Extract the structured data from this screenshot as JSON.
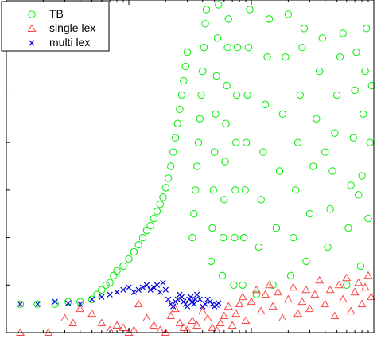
{
  "chart_data": {
    "type": "scatter",
    "title": "",
    "xlabel": "",
    "ylabel": "",
    "xscale": "log",
    "xlim": [
      1,
      1000
    ],
    "ylim": [
      0,
      7
    ],
    "grid": false,
    "legend_position": "top-left",
    "series": [
      {
        "name": "TB",
        "marker": "circle",
        "color": "#00ee00",
        "points": [
          [
            1.3,
            0.6
          ],
          [
            1.8,
            0.6
          ],
          [
            2.5,
            0.6
          ],
          [
            3.2,
            0.65
          ],
          [
            4.0,
            0.65
          ],
          [
            5.0,
            0.7
          ],
          [
            5.5,
            0.8
          ],
          [
            6.0,
            0.9
          ],
          [
            6.5,
            1.0
          ],
          [
            7.0,
            1.05
          ],
          [
            7.5,
            1.2
          ],
          [
            8.0,
            1.3
          ],
          [
            9.0,
            1.4
          ],
          [
            10,
            1.55
          ],
          [
            11,
            1.7
          ],
          [
            12,
            1.85
          ],
          [
            13,
            2.0
          ],
          [
            14,
            2.15
          ],
          [
            15,
            2.25
          ],
          [
            16,
            2.4
          ],
          [
            17,
            2.55
          ],
          [
            18,
            2.7
          ],
          [
            19,
            2.85
          ],
          [
            20,
            3.05
          ],
          [
            21,
            3.25
          ],
          [
            22,
            3.5
          ],
          [
            23,
            3.8
          ],
          [
            24,
            4.1
          ],
          [
            25,
            4.4
          ],
          [
            26,
            4.7
          ],
          [
            27,
            5.0
          ],
          [
            28,
            5.3
          ],
          [
            29,
            5.6
          ],
          [
            30,
            5.9
          ],
          [
            33,
            2.0
          ],
          [
            34,
            2.5
          ],
          [
            35,
            3.0
          ],
          [
            36,
            3.5
          ],
          [
            37,
            4.0
          ],
          [
            38,
            4.5
          ],
          [
            39,
            5.0
          ],
          [
            40,
            5.5
          ],
          [
            41,
            6.0
          ],
          [
            42,
            6.5
          ],
          [
            43,
            6.8
          ],
          [
            47,
            1.5
          ],
          [
            48,
            2.2
          ],
          [
            49,
            3.0
          ],
          [
            50,
            3.8
          ],
          [
            51,
            4.6
          ],
          [
            52,
            5.4
          ],
          [
            53,
            6.2
          ],
          [
            54,
            6.9
          ],
          [
            58,
            1.2
          ],
          [
            59,
            2.0
          ],
          [
            60,
            2.8
          ],
          [
            61,
            3.6
          ],
          [
            62,
            4.4
          ],
          [
            63,
            5.2
          ],
          [
            64,
            6.0
          ],
          [
            65,
            6.6
          ],
          [
            72,
            1.0
          ],
          [
            73,
            2.0
          ],
          [
            74,
            3.0
          ],
          [
            75,
            4.0
          ],
          [
            76,
            5.0
          ],
          [
            77,
            6.0
          ],
          [
            85,
            1.0
          ],
          [
            87,
            2.0
          ],
          [
            89,
            3.0
          ],
          [
            91,
            4.0
          ],
          [
            93,
            5.0
          ],
          [
            95,
            6.0
          ],
          [
            97,
            6.8
          ],
          [
            110,
            0.8
          ],
          [
            115,
            1.8
          ],
          [
            120,
            2.8
          ],
          [
            125,
            3.8
          ],
          [
            130,
            4.8
          ],
          [
            135,
            5.8
          ],
          [
            140,
            6.6
          ],
          [
            150,
            1.0
          ],
          [
            160,
            2.2
          ],
          [
            170,
            3.4
          ],
          [
            180,
            4.6
          ],
          [
            190,
            5.8
          ],
          [
            200,
            6.7
          ],
          [
            210,
            1.2
          ],
          [
            220,
            2.0
          ],
          [
            230,
            3.0
          ],
          [
            240,
            4.0
          ],
          [
            250,
            5.0
          ],
          [
            260,
            6.0
          ],
          [
            270,
            6.4
          ],
          [
            280,
            1.5
          ],
          [
            300,
            2.5
          ],
          [
            320,
            3.5
          ],
          [
            340,
            4.5
          ],
          [
            360,
            5.5
          ],
          [
            380,
            6.2
          ],
          [
            400,
            3.8
          ],
          [
            420,
            1.8
          ],
          [
            440,
            2.6
          ],
          [
            460,
            3.4
          ],
          [
            480,
            4.2
          ],
          [
            500,
            5.0
          ],
          [
            530,
            5.8
          ],
          [
            560,
            6.3
          ],
          [
            600,
            1.0
          ],
          [
            620,
            2.2
          ],
          [
            650,
            3.1
          ],
          [
            680,
            4.1
          ],
          [
            700,
            5.1
          ],
          [
            720,
            5.9
          ],
          [
            750,
            2.9
          ],
          [
            780,
            1.4
          ],
          [
            800,
            3.3
          ],
          [
            820,
            4.6
          ],
          [
            850,
            5.5
          ],
          [
            870,
            6.4
          ],
          [
            900,
            2.4
          ],
          [
            930,
            4.0
          ],
          [
            960,
            5.2
          ]
        ]
      },
      {
        "name": "single lex",
        "marker": "triangle",
        "color": "#ff4444",
        "points": [
          [
            1.3,
            0.0
          ],
          [
            2.2,
            0.0
          ],
          [
            3.0,
            0.3
          ],
          [
            3.5,
            0.2
          ],
          [
            4.0,
            0.5
          ],
          [
            5.0,
            0.4
          ],
          [
            6.0,
            0.2
          ],
          [
            7.0,
            0.05
          ],
          [
            8.0,
            0.15
          ],
          [
            9.0,
            0.1
          ],
          [
            10,
            0.0
          ],
          [
            11,
            0.05
          ],
          [
            12,
            0.6
          ],
          [
            14,
            0.3
          ],
          [
            16,
            0.15
          ],
          [
            18,
            0.05
          ],
          [
            20,
            0.0
          ],
          [
            22,
            0.35
          ],
          [
            24,
            0.5
          ],
          [
            26,
            0.2
          ],
          [
            28,
            0.1
          ],
          [
            30,
            0.05
          ],
          [
            33,
            0.25
          ],
          [
            36,
            0.15
          ],
          [
            40,
            0.45
          ],
          [
            44,
            0.3
          ],
          [
            48,
            0.1
          ],
          [
            52,
            0.05
          ],
          [
            56,
            0.2
          ],
          [
            60,
            0.35
          ],
          [
            65,
            0.55
          ],
          [
            70,
            0.15
          ],
          [
            75,
            0.4
          ],
          [
            80,
            0.6
          ],
          [
            85,
            0.75
          ],
          [
            90,
            0.25
          ],
          [
            100,
            0.65
          ],
          [
            110,
            0.9
          ],
          [
            120,
            0.45
          ],
          [
            130,
            0.8
          ],
          [
            140,
            1.0
          ],
          [
            150,
            0.55
          ],
          [
            165,
            0.85
          ],
          [
            180,
            0.3
          ],
          [
            200,
            0.7
          ],
          [
            220,
            0.95
          ],
          [
            240,
            0.4
          ],
          [
            260,
            0.65
          ],
          [
            280,
            0.9
          ],
          [
            300,
            0.5
          ],
          [
            330,
            0.8
          ],
          [
            360,
            1.1
          ],
          [
            400,
            0.6
          ],
          [
            440,
            0.9
          ],
          [
            480,
            0.35
          ],
          [
            520,
            1.0
          ],
          [
            560,
            0.7
          ],
          [
            600,
            1.15
          ],
          [
            650,
            0.45
          ],
          [
            700,
            0.85
          ],
          [
            750,
            1.05
          ],
          [
            800,
            0.6
          ],
          [
            850,
            0.95
          ],
          [
            900,
            1.2
          ],
          [
            950,
            0.75
          ]
        ]
      },
      {
        "name": "multi lex",
        "marker": "x",
        "color": "#0000dd",
        "points": [
          [
            1.3,
            0.6
          ],
          [
            1.8,
            0.6
          ],
          [
            2.5,
            0.65
          ],
          [
            3.2,
            0.62
          ],
          [
            4.0,
            0.6
          ],
          [
            5.0,
            0.7
          ],
          [
            6.0,
            0.75
          ],
          [
            7.0,
            0.8
          ],
          [
            8.0,
            0.85
          ],
          [
            9.0,
            0.9
          ],
          [
            10,
            0.95
          ],
          [
            11,
            0.85
          ],
          [
            12,
            0.9
          ],
          [
            13,
            0.95
          ],
          [
            14,
            1.0
          ],
          [
            15,
            0.9
          ],
          [
            16,
            0.95
          ],
          [
            17,
            1.0
          ],
          [
            18,
            0.85
          ],
          [
            19,
            1.05
          ],
          [
            20,
            0.9
          ],
          [
            21,
            0.7
          ],
          [
            22,
            0.6
          ],
          [
            23,
            0.55
          ],
          [
            24,
            0.65
          ],
          [
            25,
            0.7
          ],
          [
            26,
            0.8
          ],
          [
            27,
            0.75
          ],
          [
            28,
            0.65
          ],
          [
            29,
            0.6
          ],
          [
            30,
            0.55
          ],
          [
            31,
            0.7
          ],
          [
            32,
            0.75
          ],
          [
            33,
            0.65
          ],
          [
            34,
            0.6
          ],
          [
            35,
            0.7
          ],
          [
            36,
            0.8
          ],
          [
            38,
            0.7
          ],
          [
            40,
            0.55
          ],
          [
            42,
            0.6
          ],
          [
            44,
            0.7
          ],
          [
            46,
            0.65
          ],
          [
            48,
            0.6
          ],
          [
            50,
            0.55
          ],
          [
            52,
            0.58
          ],
          [
            54,
            0.62
          ]
        ]
      }
    ]
  }
}
